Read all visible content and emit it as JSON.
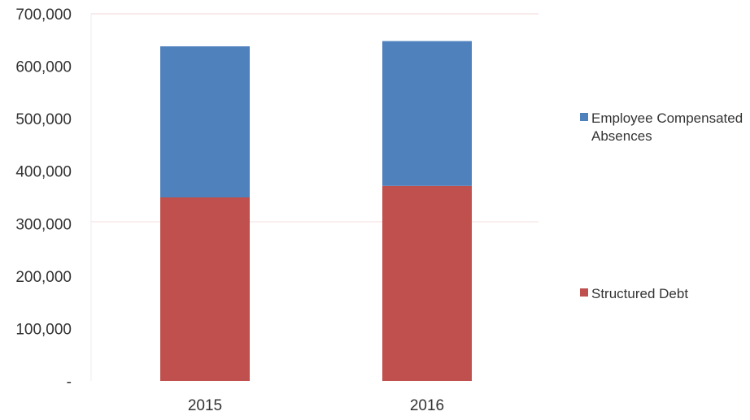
{
  "chart_data": {
    "type": "bar",
    "stacked": true,
    "categories": [
      "2015",
      "2016"
    ],
    "series": [
      {
        "name": "Structured Debt",
        "values": [
          350000,
          372000
        ],
        "color": "#c0504d"
      },
      {
        "name": "Employee Compensated Absences",
        "values": [
          288000,
          276000
        ],
        "color": "#4f81bd"
      }
    ],
    "ylim": [
      0,
      700000
    ],
    "y_ticks": [
      0,
      100000,
      200000,
      300000,
      400000,
      500000,
      600000,
      700000
    ],
    "y_tick_labels": [
      "-",
      "100,000",
      "200,000",
      "300,000",
      "400,000",
      "500,000",
      "600,000",
      "700,000"
    ],
    "legend": {
      "placement": "right",
      "entries": [
        {
          "lines": [
            "Employee Compensated",
            "Absences"
          ],
          "color": "#4f81bd"
        },
        {
          "lines": [
            "Structured Debt"
          ],
          "color": "#c0504d"
        }
      ]
    },
    "grid": false
  }
}
